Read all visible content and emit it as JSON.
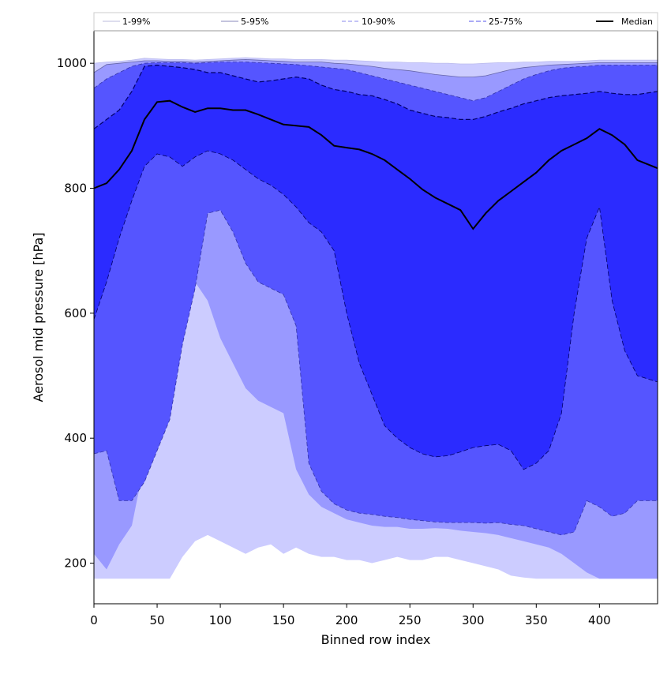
{
  "chart_data": {
    "type": "area",
    "title": "",
    "xlabel": "Binned row index",
    "ylabel": "Aerosol mid pressure [hPa]",
    "xlim": [
      0,
      446
    ],
    "ylim": [
      135,
      1052
    ],
    "x_ticks": [
      0,
      50,
      100,
      150,
      200,
      250,
      300,
      350,
      400
    ],
    "y_ticks": [
      200,
      400,
      600,
      800,
      1000
    ],
    "grid": false,
    "legend_position": "top, spanning full width above plot",
    "floor_value": 175,
    "x": [
      0,
      10,
      20,
      30,
      40,
      50,
      60,
      70,
      80,
      90,
      100,
      110,
      120,
      130,
      140,
      150,
      160,
      170,
      180,
      190,
      200,
      210,
      220,
      230,
      240,
      250,
      260,
      270,
      280,
      290,
      300,
      310,
      320,
      330,
      340,
      350,
      360,
      370,
      380,
      390,
      400,
      410,
      420,
      430,
      446
    ],
    "bands": [
      {
        "name": "1-99%",
        "color": "#ccccff",
        "lower": [
          175,
          175,
          175,
          175,
          175,
          175,
          175,
          210,
          235,
          245,
          235,
          225,
          215,
          225,
          230,
          215,
          225,
          215,
          210,
          210,
          205,
          205,
          200,
          205,
          210,
          205,
          205,
          210,
          210,
          205,
          200,
          195,
          190,
          180,
          177,
          175,
          175,
          175,
          175,
          175,
          175,
          175,
          175,
          175,
          175
        ],
        "upper": [
          1000,
          1002,
          1003,
          1005,
          1008,
          1007,
          1006,
          1006,
          1005,
          1006,
          1007,
          1008,
          1009,
          1008,
          1007,
          1007,
          1006,
          1006,
          1006,
          1005,
          1005,
          1004,
          1003,
          1002,
          1002,
          1001,
          1001,
          1000,
          1000,
          999,
          999,
          1000,
          1001,
          1001,
          1002,
          1002,
          1003,
          1003,
          1003,
          1004,
          1005,
          1005,
          1005,
          1005,
          1005
        ]
      },
      {
        "name": "5-95%",
        "color": "#9999ff",
        "lower": [
          215,
          190,
          230,
          260,
          360,
          440,
          560,
          600,
          650,
          620,
          560,
          520,
          480,
          460,
          450,
          440,
          350,
          310,
          290,
          280,
          270,
          265,
          260,
          258,
          258,
          255,
          255,
          256,
          255,
          252,
          250,
          248,
          245,
          240,
          235,
          230,
          225,
          215,
          200,
          185,
          175,
          175,
          175,
          175,
          175
        ],
        "upper": [
          985,
          998,
          1000,
          1002,
          1004,
          1004,
          1003,
          1003,
          1002,
          1003,
          1004,
          1005,
          1006,
          1005,
          1004,
          1003,
          1002,
          1002,
          1002,
          1000,
          999,
          997,
          995,
          992,
          990,
          988,
          985,
          982,
          980,
          978,
          978,
          980,
          985,
          990,
          993,
          995,
          997,
          998,
          999,
          1000,
          1001,
          1001,
          1001,
          1001,
          1001
        ]
      },
      {
        "name": "10-90%",
        "color": "#5555ff",
        "lower": [
          375,
          380,
          300,
          300,
          330,
          380,
          430,
          550,
          640,
          760,
          765,
          730,
          680,
          650,
          640,
          630,
          580,
          360,
          315,
          295,
          285,
          280,
          278,
          275,
          273,
          270,
          268,
          266,
          265,
          265,
          265,
          264,
          265,
          262,
          260,
          255,
          250,
          245,
          250,
          300,
          290,
          275,
          280,
          300,
          300
        ],
        "upper": [
          960,
          975,
          985,
          995,
          1000,
          1001,
          1001,
          1001,
          1000,
          1001,
          1002,
          1002,
          1002,
          1001,
          1000,
          999,
          998,
          996,
          994,
          992,
          990,
          985,
          980,
          975,
          970,
          965,
          960,
          955,
          950,
          945,
          940,
          945,
          955,
          965,
          975,
          982,
          988,
          992,
          994,
          995,
          997,
          997,
          997,
          997,
          997
        ]
      },
      {
        "name": "25-75%",
        "color": "#2b2bff",
        "lower": [
          590,
          650,
          720,
          780,
          835,
          855,
          850,
          835,
          850,
          860,
          855,
          845,
          830,
          815,
          805,
          790,
          770,
          745,
          730,
          700,
          600,
          520,
          470,
          420,
          400,
          385,
          375,
          370,
          372,
          378,
          385,
          388,
          390,
          380,
          350,
          360,
          380,
          440,
          600,
          720,
          770,
          620,
          540,
          500,
          490
        ],
        "upper": [
          895,
          910,
          925,
          955,
          995,
          997,
          995,
          993,
          990,
          985,
          985,
          980,
          975,
          970,
          972,
          975,
          978,
          975,
          965,
          958,
          955,
          950,
          948,
          942,
          935,
          925,
          920,
          915,
          913,
          910,
          910,
          915,
          922,
          928,
          935,
          940,
          945,
          948,
          950,
          952,
          955,
          952,
          950,
          950,
          955
        ]
      }
    ],
    "median": {
      "name": "Median",
      "color": "#000000",
      "values": [
        800,
        808,
        830,
        860,
        910,
        938,
        940,
        930,
        922,
        928,
        928,
        925,
        925,
        918,
        910,
        902,
        900,
        898,
        885,
        868,
        865,
        862,
        855,
        845,
        830,
        815,
        798,
        785,
        775,
        765,
        735,
        760,
        780,
        795,
        810,
        825,
        845,
        860,
        870,
        880,
        895,
        885,
        870,
        845,
        832
      ]
    }
  }
}
